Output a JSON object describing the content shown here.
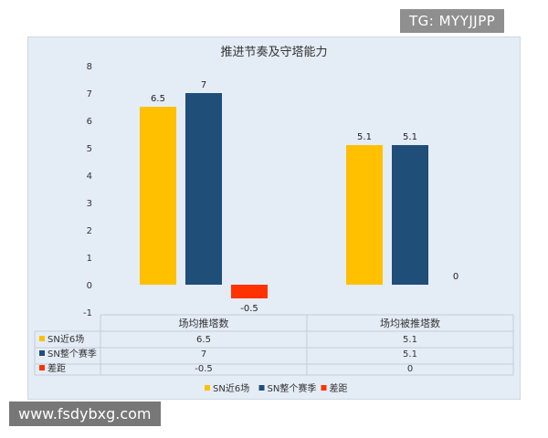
{
  "watermarks": {
    "top_right": "TG: MYYJJPP",
    "bottom_left": "www.fsdybxg.com"
  },
  "chart_data": {
    "type": "bar",
    "title": "推进节奏及守塔能力",
    "categories": [
      "场均推塔数",
      "场均被推塔数"
    ],
    "ylim": [
      -1,
      8
    ],
    "yticks": [
      -1,
      0,
      1,
      2,
      3,
      4,
      5,
      6,
      7,
      8
    ],
    "grid": false,
    "legend": "bottom",
    "series": [
      {
        "name": "SN近6场",
        "values": [
          6.5,
          5.1
        ],
        "labels": [
          "6.5",
          "5.1"
        ],
        "color": "#ffc000"
      },
      {
        "name": "SN整个赛季",
        "values": [
          7,
          5.1
        ],
        "labels": [
          "7",
          "5.1"
        ],
        "color": "#1f4e79"
      },
      {
        "name": "差距",
        "values": [
          -0.5,
          0
        ],
        "labels": [
          "-0.5",
          "0"
        ],
        "color": "#ff3300"
      }
    ],
    "table": {
      "headers": [
        "场均推塔数",
        "场均被推塔数"
      ],
      "rows": [
        {
          "name": "SN近6场",
          "cells": [
            "6.5",
            "5.1"
          ]
        },
        {
          "name": "SN整个赛季",
          "cells": [
            "7",
            "5.1"
          ]
        },
        {
          "name": "差距",
          "cells": [
            "-0.5",
            "0"
          ]
        }
      ]
    }
  }
}
